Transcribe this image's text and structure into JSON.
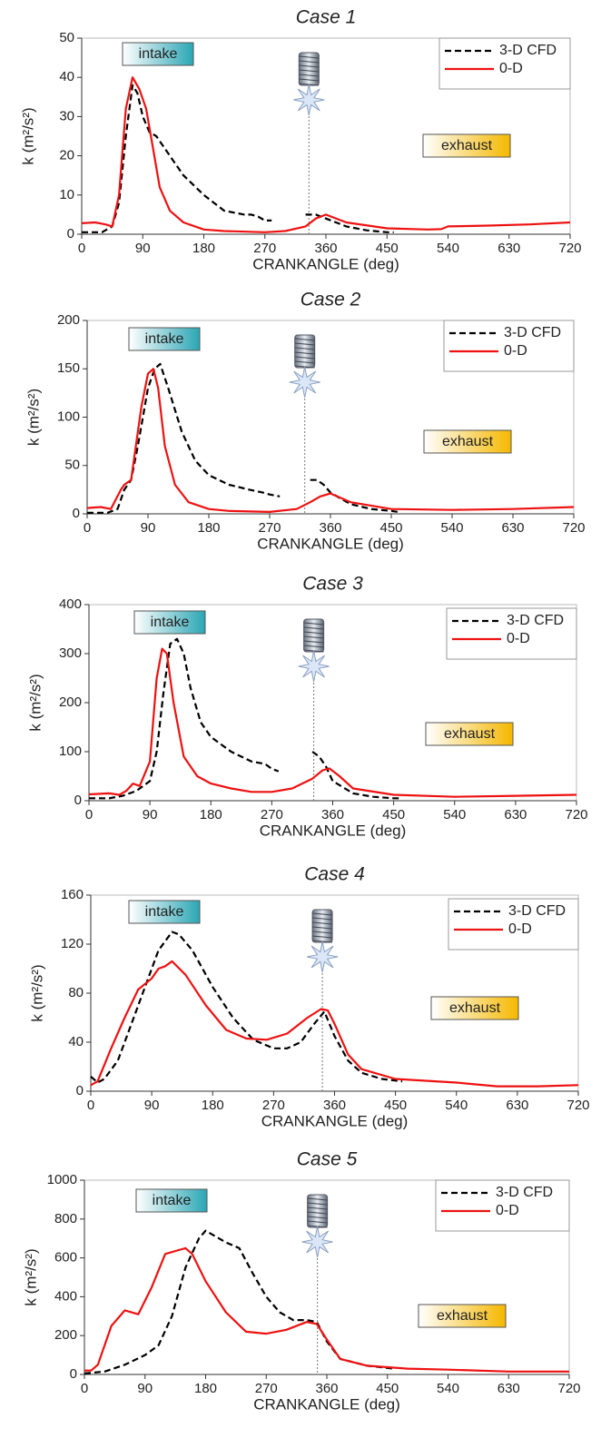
{
  "chart_data": [
    {
      "type": "line",
      "title": "Case 1",
      "xlabel": "CRANKANGLE (deg)",
      "ylabel": "k (m²/s²)",
      "xlim": [
        0,
        720
      ],
      "xticks": [
        0,
        90,
        180,
        270,
        360,
        450,
        540,
        630,
        720
      ],
      "ylim": [
        0,
        50
      ],
      "yticks": [
        0,
        10,
        20,
        30,
        40,
        50
      ],
      "annotations": [
        "intake",
        "exhaust"
      ],
      "ignition_x": 335,
      "series": [
        {
          "name": "3-D CFD",
          "color": "#000000",
          "dash": true,
          "x": [
            0,
            30,
            45,
            55,
            65,
            75,
            82,
            90,
            100,
            110,
            130,
            150,
            180,
            210,
            240,
            250,
            260,
            270,
            280,
            305,
            330,
            345,
            360,
            390,
            420,
            450,
            460
          ],
          "values": [
            0.5,
            0.5,
            2,
            8,
            25,
            38,
            36,
            30,
            26,
            25,
            20,
            15,
            10,
            6,
            5,
            5,
            4.5,
            3.5,
            3.5,
            null,
            5,
            5,
            4,
            2,
            1,
            0.5,
            0.5
          ]
        },
        {
          "name": "0-D",
          "color": "#ee1111",
          "dash": false,
          "x": [
            0,
            20,
            35,
            45,
            55,
            65,
            75,
            85,
            95,
            105,
            115,
            130,
            150,
            180,
            210,
            270,
            300,
            330,
            345,
            360,
            390,
            450,
            510,
            530,
            540,
            600,
            660,
            720
          ],
          "values": [
            2.8,
            3,
            2.5,
            2,
            10,
            32,
            40,
            37,
            32,
            22,
            12,
            6,
            3,
            1.2,
            0.8,
            0.5,
            0.8,
            2,
            4,
            5,
            3,
            1.5,
            1.2,
            1.3,
            2,
            2.2,
            2.5,
            3
          ]
        }
      ]
    },
    {
      "type": "line",
      "title": "Case 2",
      "xlabel": "CRANKANGLE (deg)",
      "ylabel": "k (m²/s²)",
      "xlim": [
        0,
        720
      ],
      "xticks": [
        0,
        90,
        180,
        270,
        360,
        450,
        540,
        630,
        720
      ],
      "ylim": [
        0,
        200
      ],
      "yticks": [
        0,
        50,
        100,
        150,
        200
      ],
      "annotations": [
        "intake",
        "exhaust"
      ],
      "ignition_x": 322,
      "series": [
        {
          "name": "3-D CFD",
          "color": "#000000",
          "dash": true,
          "x": [
            0,
            30,
            45,
            55,
            65,
            75,
            90,
            100,
            108,
            120,
            140,
            160,
            180,
            210,
            240,
            260,
            270,
            285,
            305,
            330,
            340,
            350,
            360,
            390,
            420,
            450,
            460
          ],
          "values": [
            1,
            1,
            5,
            25,
            35,
            70,
            130,
            150,
            155,
            130,
            85,
            55,
            40,
            30,
            25,
            22,
            20,
            18,
            null,
            35,
            35,
            30,
            22,
            10,
            5,
            3,
            2
          ]
        },
        {
          "name": "0-D",
          "color": "#ee1111",
          "dash": false,
          "x": [
            0,
            20,
            35,
            50,
            55,
            65,
            80,
            90,
            98,
            105,
            115,
            130,
            150,
            180,
            210,
            270,
            310,
            330,
            345,
            360,
            390,
            450,
            540,
            630,
            720
          ],
          "values": [
            6,
            7,
            5,
            25,
            30,
            35,
            110,
            145,
            150,
            130,
            70,
            30,
            12,
            5,
            3,
            2,
            5,
            12,
            18,
            21,
            12,
            5,
            4,
            5,
            7
          ]
        }
      ]
    },
    {
      "type": "line",
      "title": "Case 3",
      "xlabel": "CRANKANGLE (deg)",
      "ylabel": "k (m²/s²)",
      "xlim": [
        0,
        720
      ],
      "xticks": [
        0,
        90,
        180,
        270,
        360,
        450,
        540,
        630,
        720
      ],
      "ylim": [
        0,
        400
      ],
      "yticks": [
        0,
        100,
        200,
        300,
        400
      ],
      "annotations": [
        "intake",
        "exhaust"
      ],
      "ignition_x": 332,
      "series": [
        {
          "name": "3-D CFD",
          "color": "#000000",
          "dash": true,
          "x": [
            0,
            30,
            50,
            70,
            90,
            100,
            110,
            120,
            130,
            140,
            150,
            165,
            180,
            210,
            240,
            260,
            270,
            280,
            300,
            330,
            340,
            350,
            360,
            390,
            420,
            450,
            460
          ],
          "values": [
            5,
            5,
            10,
            20,
            40,
            100,
            220,
            320,
            330,
            300,
            230,
            160,
            130,
            100,
            80,
            75,
            65,
            60,
            null,
            100,
            90,
            70,
            40,
            15,
            8,
            5,
            5
          ]
        },
        {
          "name": "0-D",
          "color": "#ee1111",
          "dash": false,
          "x": [
            0,
            30,
            45,
            55,
            65,
            75,
            90,
            100,
            108,
            115,
            125,
            140,
            160,
            180,
            210,
            240,
            270,
            300,
            330,
            345,
            355,
            370,
            390,
            450,
            540,
            630,
            720
          ],
          "values": [
            13,
            15,
            12,
            20,
            35,
            30,
            80,
            250,
            310,
            300,
            200,
            90,
            50,
            35,
            25,
            18,
            18,
            25,
            45,
            62,
            66,
            50,
            25,
            12,
            8,
            10,
            12
          ]
        }
      ]
    },
    {
      "type": "line",
      "title": "Case 4",
      "xlabel": "CRANKANGLE (deg)",
      "ylabel": "k (m²/s²)",
      "xlim": [
        0,
        720
      ],
      "xticks": [
        0,
        90,
        180,
        270,
        360,
        450,
        540,
        630,
        720
      ],
      "ylim": [
        0,
        160
      ],
      "yticks": [
        0,
        40,
        80,
        120,
        160
      ],
      "annotations": [
        "intake",
        "exhaust"
      ],
      "ignition_x": 342,
      "series": [
        {
          "name": "3-D CFD",
          "color": "#000000",
          "dash": true,
          "x": [
            0,
            10,
            20,
            40,
            60,
            80,
            100,
            120,
            130,
            150,
            180,
            210,
            240,
            270,
            290,
            310,
            330,
            345,
            360,
            380,
            400,
            430,
            460
          ],
          "values": [
            12,
            7,
            10,
            25,
            55,
            85,
            115,
            130,
            128,
            115,
            85,
            60,
            42,
            35,
            35,
            40,
            55,
            65,
            45,
            25,
            15,
            10,
            8
          ]
        },
        {
          "name": "0-D",
          "color": "#ee1111",
          "dash": false,
          "x": [
            0,
            10,
            30,
            50,
            70,
            90,
            100,
            110,
            120,
            140,
            170,
            200,
            230,
            260,
            290,
            320,
            340,
            350,
            360,
            380,
            400,
            450,
            540,
            600,
            660,
            720
          ],
          "values": [
            5,
            8,
            35,
            60,
            83,
            92,
            100,
            102,
            106,
            95,
            70,
            50,
            43,
            42,
            47,
            60,
            67,
            66,
            55,
            30,
            18,
            10,
            7,
            4,
            4,
            5
          ]
        }
      ]
    },
    {
      "type": "line",
      "title": "Case 5",
      "xlabel": "CRANKANGLE (deg)",
      "ylabel": "k (m²/s²)",
      "xlim": [
        0,
        720
      ],
      "xticks": [
        0,
        90,
        180,
        270,
        360,
        450,
        540,
        630,
        720
      ],
      "ylim": [
        0,
        1000
      ],
      "yticks": [
        0,
        200,
        400,
        600,
        800,
        1000
      ],
      "annotations": [
        "intake",
        "exhaust"
      ],
      "ignition_x": 346,
      "series": [
        {
          "name": "3-D CFD",
          "color": "#000000",
          "dash": true,
          "x": [
            0,
            30,
            60,
            90,
            110,
            130,
            150,
            170,
            180,
            190,
            210,
            230,
            250,
            270,
            290,
            310,
            330,
            345,
            360,
            380,
            420,
            460
          ],
          "values": [
            5,
            15,
            50,
            100,
            150,
            300,
            550,
            700,
            740,
            720,
            680,
            650,
            520,
            400,
            320,
            280,
            280,
            270,
            170,
            80,
            45,
            30
          ]
        },
        {
          "name": "0-D",
          "color": "#ee1111",
          "dash": false,
          "x": [
            0,
            10,
            20,
            40,
            60,
            80,
            100,
            120,
            140,
            150,
            160,
            180,
            210,
            240,
            270,
            300,
            330,
            345,
            360,
            380,
            420,
            480,
            540,
            630,
            720
          ],
          "values": [
            20,
            20,
            50,
            250,
            330,
            310,
            450,
            620,
            640,
            650,
            620,
            480,
            320,
            220,
            210,
            230,
            270,
            260,
            180,
            80,
            45,
            30,
            25,
            15,
            15
          ]
        }
      ]
    }
  ]
}
